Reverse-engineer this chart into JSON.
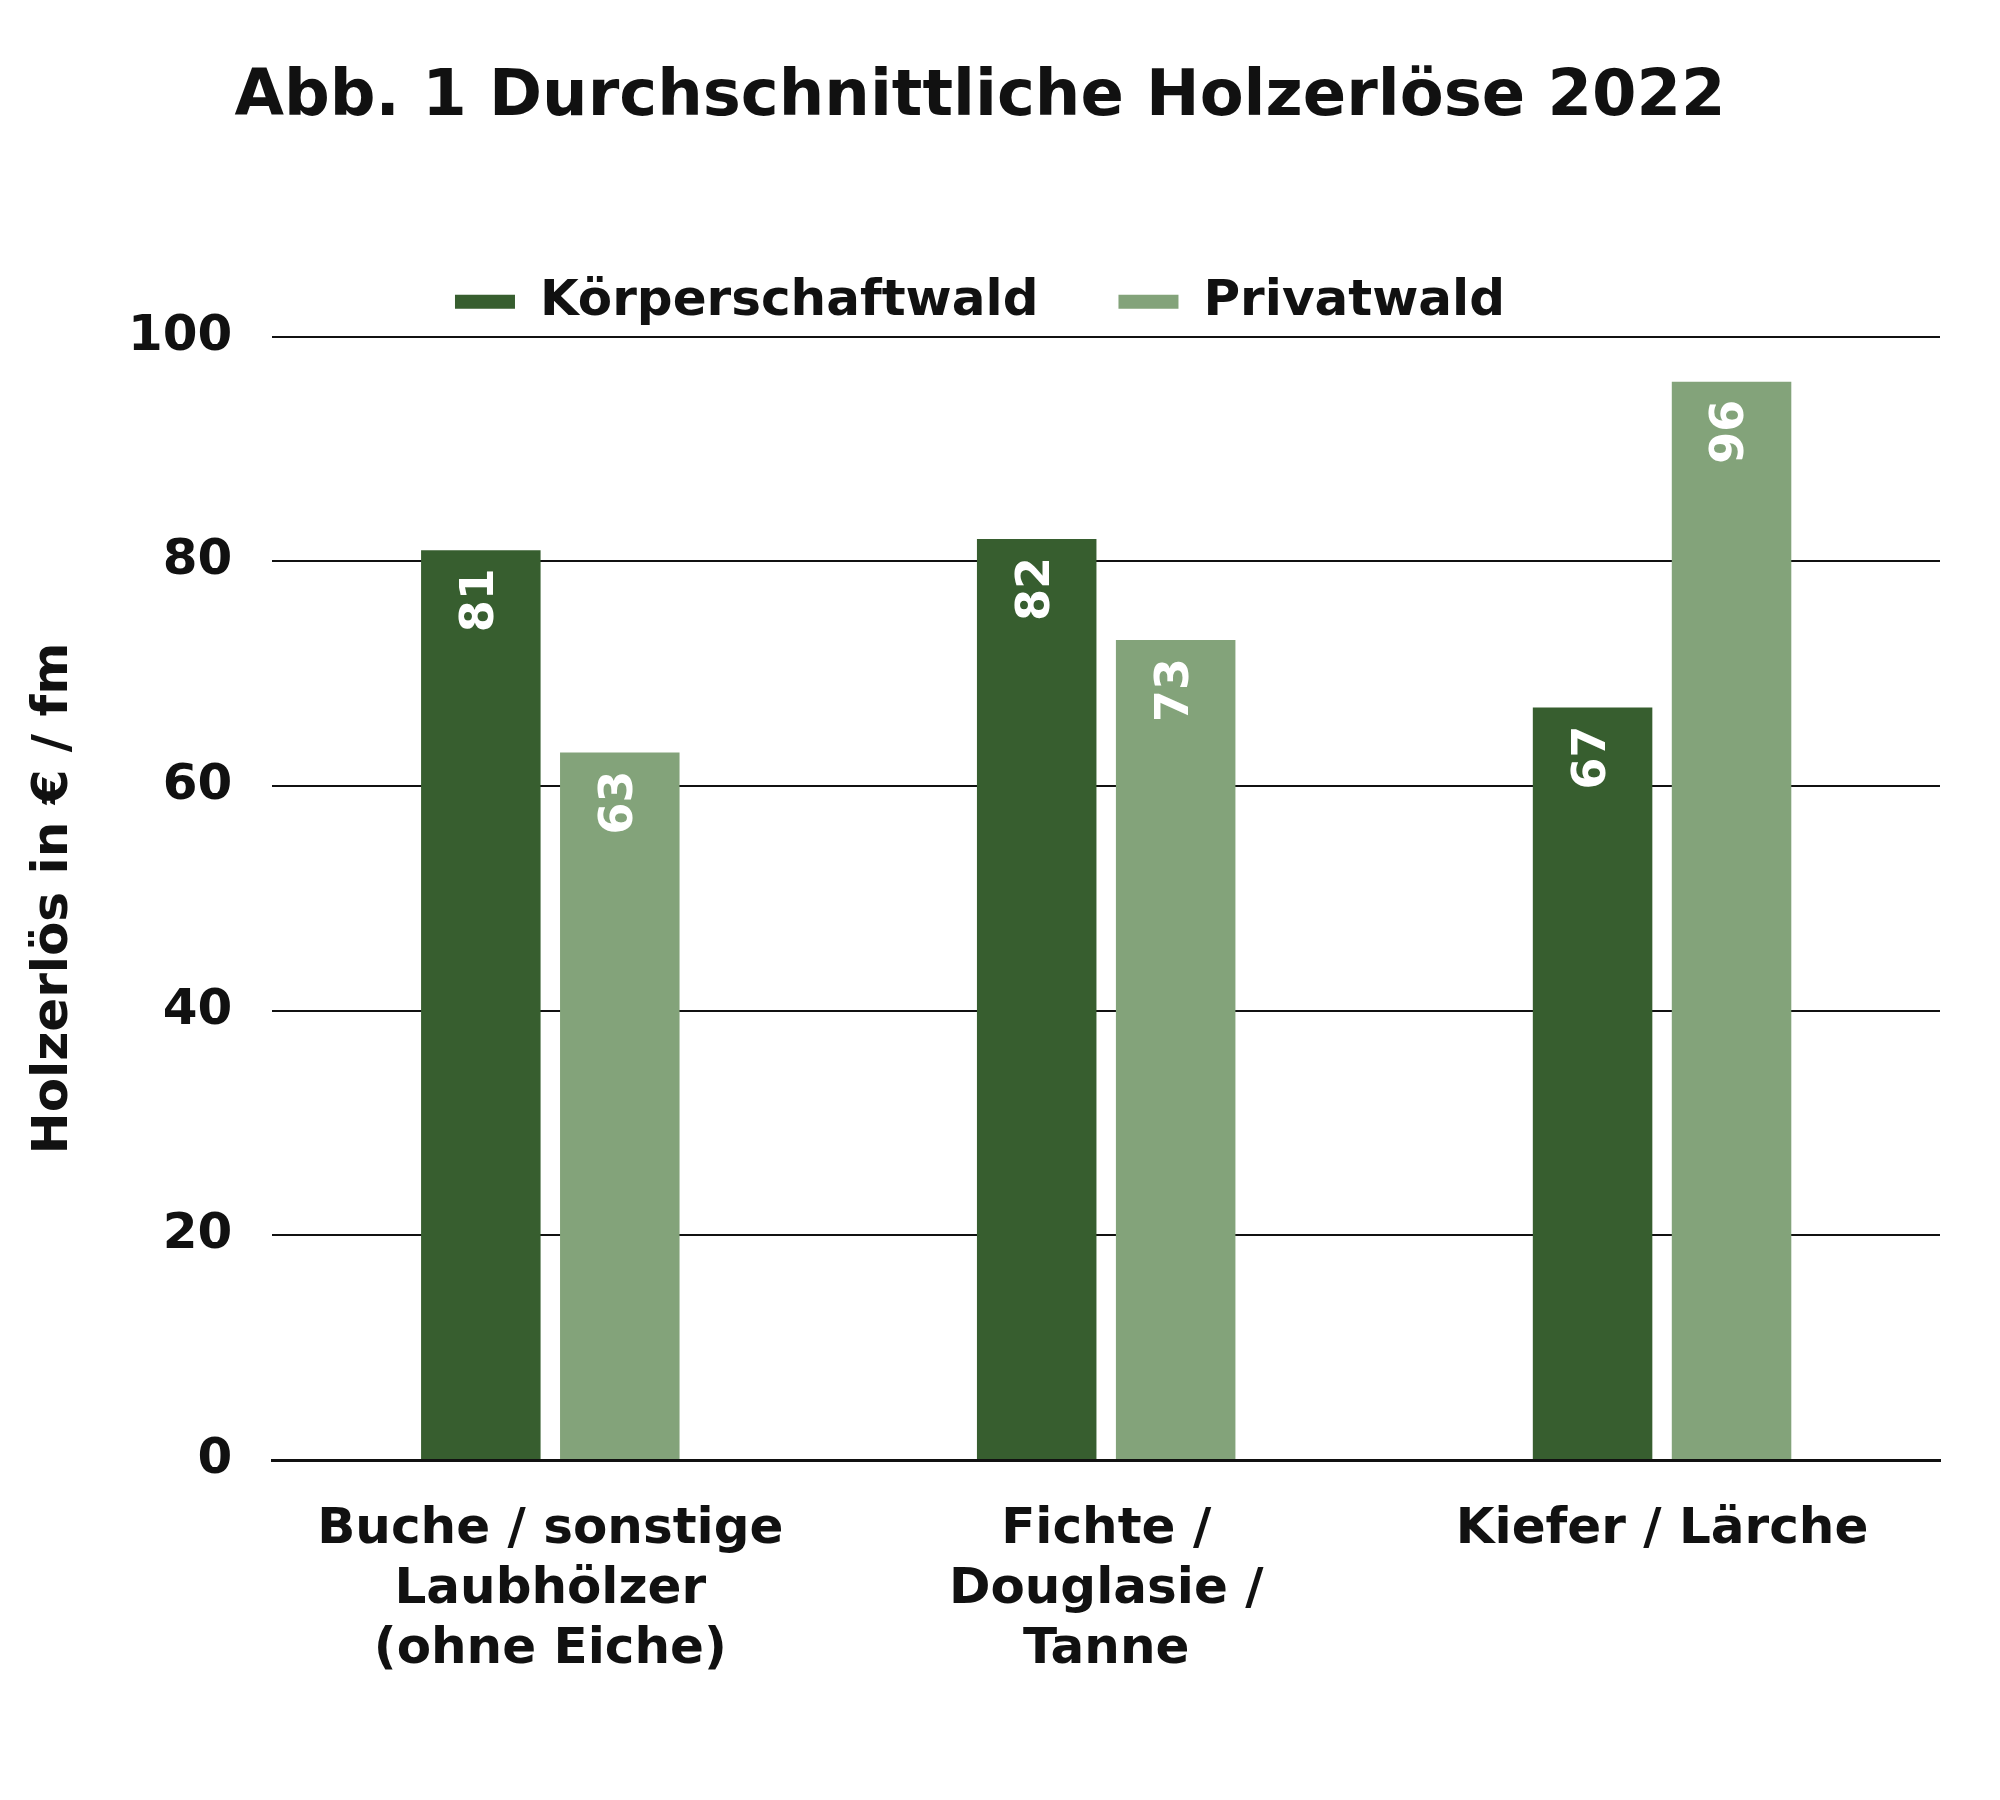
{
  "chart_data": {
    "type": "bar",
    "title": "Abb. 1 Durchschnittliche Holzerlöse 2022",
    "ylabel": "Holzerlös in € / fm",
    "categories": [
      "Buche / sonstige Laubhölzer (ohne Eiche)",
      "Fichte / Douglasie / Tanne",
      "Kiefer / Lärche"
    ],
    "series": [
      {
        "name": "Körperschaftwald",
        "color": "#375e2f",
        "values": [
          81,
          82,
          67
        ]
      },
      {
        "name": "Privatwald",
        "color": "#83a37a",
        "values": [
          63,
          73,
          96
        ]
      }
    ],
    "ylim": [
      0,
      100
    ],
    "yticks": [
      0,
      20,
      40,
      60,
      80,
      100
    ],
    "grid": "y",
    "legend": "top",
    "data_labels": true
  }
}
